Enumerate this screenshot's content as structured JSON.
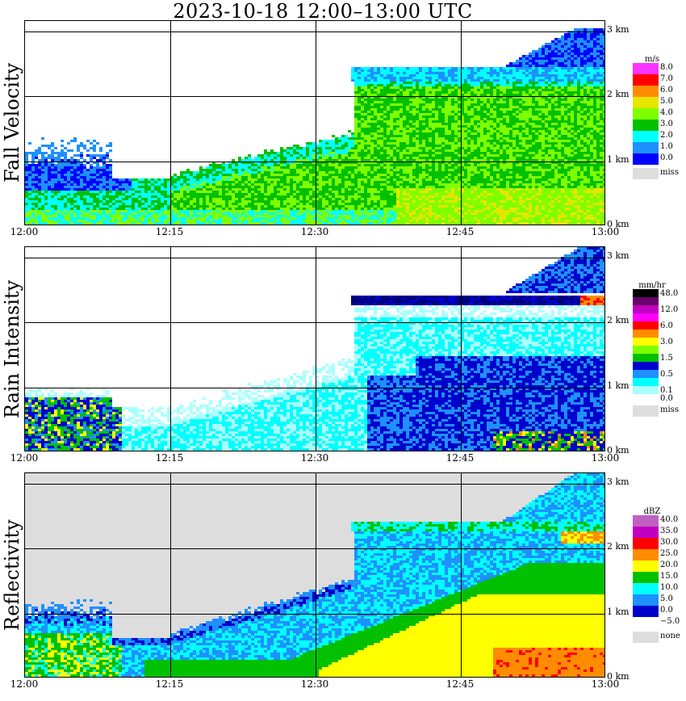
{
  "title": "2023-10-18   12:00–13:00 UTC",
  "chart_data": [
    {
      "type": "heatmap",
      "panel": "Fall Velocity",
      "unit": "m/s",
      "x_ticks": [
        "12:00",
        "12:15",
        "12:30",
        "12:45",
        "13:00"
      ],
      "y_ticks": [
        "0 km",
        "1 km",
        "2 km",
        "3 km"
      ],
      "xlim": [
        "12:00",
        "13:00"
      ],
      "ylim_km": [
        0,
        3.2
      ],
      "grid": true,
      "legend": {
        "levels": [
          "8.0",
          "7.0",
          "6.0",
          "5.0",
          "4.0",
          "3.0",
          "2.0",
          "1.0",
          "0.0"
        ],
        "colors": [
          "#ff33ff",
          "#ff0000",
          "#ff8c00",
          "#e6e600",
          "#7fff00",
          "#00c000",
          "#00ffff",
          "#1e90ff",
          "#0000ff"
        ],
        "miss_label": "miss",
        "miss_color": "#dddddd"
      }
    },
    {
      "type": "heatmap",
      "panel": "Rain Intensity",
      "unit": "mm/hr",
      "x_ticks": [
        "12:00",
        "12:15",
        "12:30",
        "12:45",
        "13:00"
      ],
      "y_ticks": [
        "0 km",
        "1 km",
        "2 km",
        "3 km"
      ],
      "xlim": [
        "12:00",
        "13:00"
      ],
      "ylim_km": [
        0,
        3.2
      ],
      "grid": true,
      "legend": {
        "levels": [
          "48.0",
          "",
          "12.0",
          "",
          "6.0",
          "",
          "3.0",
          "",
          "1.5",
          "",
          "0.5",
          "",
          "0.1",
          "0.0"
        ],
        "colors": [
          "#000000",
          "#6a006a",
          "#c000c0",
          "#ff00ff",
          "#ff0000",
          "#ff8c00",
          "#ffff00",
          "#7fff00",
          "#00c000",
          "#0000cd",
          "#1e90ff",
          "#00ffff",
          "#aaffff",
          "#ffffff"
        ],
        "miss_label": "miss",
        "miss_color": "#dddddd"
      }
    },
    {
      "type": "heatmap",
      "panel": "Reflectivity",
      "unit": "dBZ",
      "x_ticks": [
        "12:00",
        "12:15",
        "12:30",
        "12:45",
        "13:00"
      ],
      "y_ticks": [
        "0 km",
        "1 km",
        "2 km",
        "3 km"
      ],
      "xlim": [
        "12:00",
        "13:00"
      ],
      "ylim_km": [
        0,
        3.2
      ],
      "grid": true,
      "legend": {
        "levels": [
          "40.0",
          "35.0",
          "30.0",
          "25.0",
          "20.0",
          "15.0",
          "10.0",
          "5.0",
          "0.0",
          "−5.0"
        ],
        "colors": [
          "#c060c0",
          "#c000c0",
          "#ff0000",
          "#ff8c00",
          "#ffff00",
          "#00c000",
          "#00ffff",
          "#1e90ff",
          "#0000cd",
          "#ffffff"
        ],
        "miss_label": "none",
        "miss_color": "#dddddd"
      }
    }
  ]
}
